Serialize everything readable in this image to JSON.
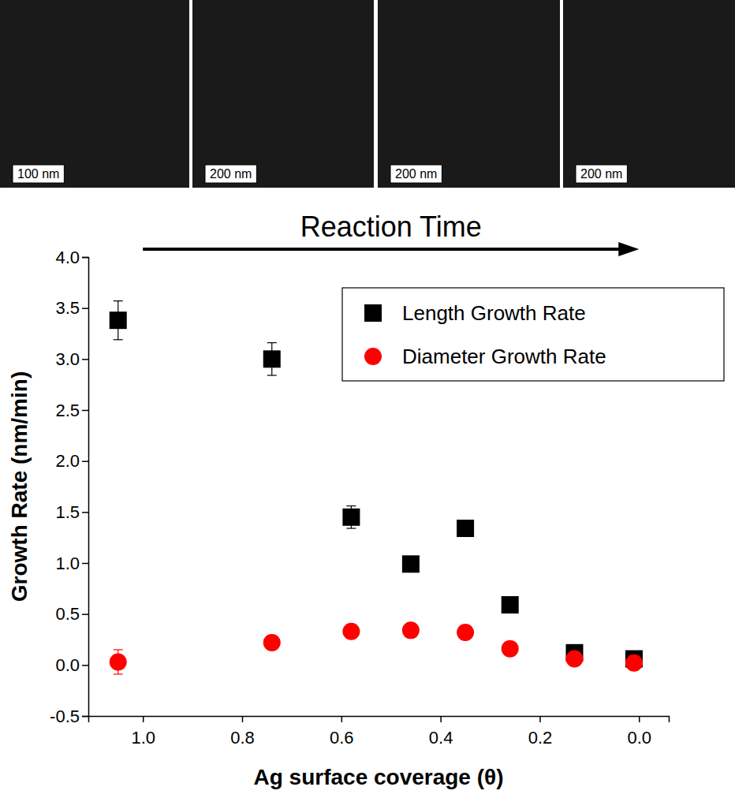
{
  "chart_data": {
    "type": "scatter",
    "annotation": "Reaction Time",
    "x_label": "Ag surface coverage (θ)",
    "y_label": "Growth Rate (nm/min)",
    "x": [
      1.05,
      0.74,
      0.58,
      0.46,
      0.35,
      0.26,
      0.13,
      0.01
    ],
    "series": [
      {
        "name": "Length Growth Rate",
        "color": "#000000",
        "marker": "square",
        "values": [
          3.38,
          3.0,
          1.45,
          0.99,
          1.34,
          0.59,
          0.12,
          0.06
        ],
        "errors": [
          0.19,
          0.16,
          0.11,
          0.06,
          0.04,
          0.03,
          0.03,
          0.03
        ]
      },
      {
        "name": "Diameter Growth Rate",
        "color": "#ff0000",
        "marker": "circle",
        "values": [
          0.03,
          0.22,
          0.33,
          0.34,
          0.32,
          0.16,
          0.06,
          0.02
        ],
        "errors": [
          0.12,
          0.03,
          0.03,
          0.03,
          0.03,
          0.03,
          0.04,
          0.04
        ]
      }
    ],
    "xlim": [
      1.11,
      -0.06
    ],
    "xticks": [
      {
        "value": 1.0,
        "label": "1.0"
      },
      0.8,
      0.6,
      0.4,
      0.2,
      {
        "value": 0,
        "label": "0.0"
      }
    ],
    "ylim": [
      -0.5,
      4.0
    ],
    "yticks": [
      -0.5,
      {
        "value": 0,
        "label": "0.0"
      },
      0.5,
      {
        "value": 1,
        "label": "1.0"
      },
      1.5,
      {
        "value": 2,
        "label": "2.0"
      },
      2.5,
      {
        "value": 3,
        "label": "3.0"
      },
      3.5,
      {
        "value": 4,
        "label": "4.0"
      }
    ],
    "legend": "upper right",
    "grid": false
  },
  "micrographs": [
    {
      "scale_bar": "100 nm"
    },
    {
      "scale_bar": "200 nm"
    },
    {
      "scale_bar": "200 nm"
    },
    {
      "scale_bar": "200 nm"
    }
  ]
}
